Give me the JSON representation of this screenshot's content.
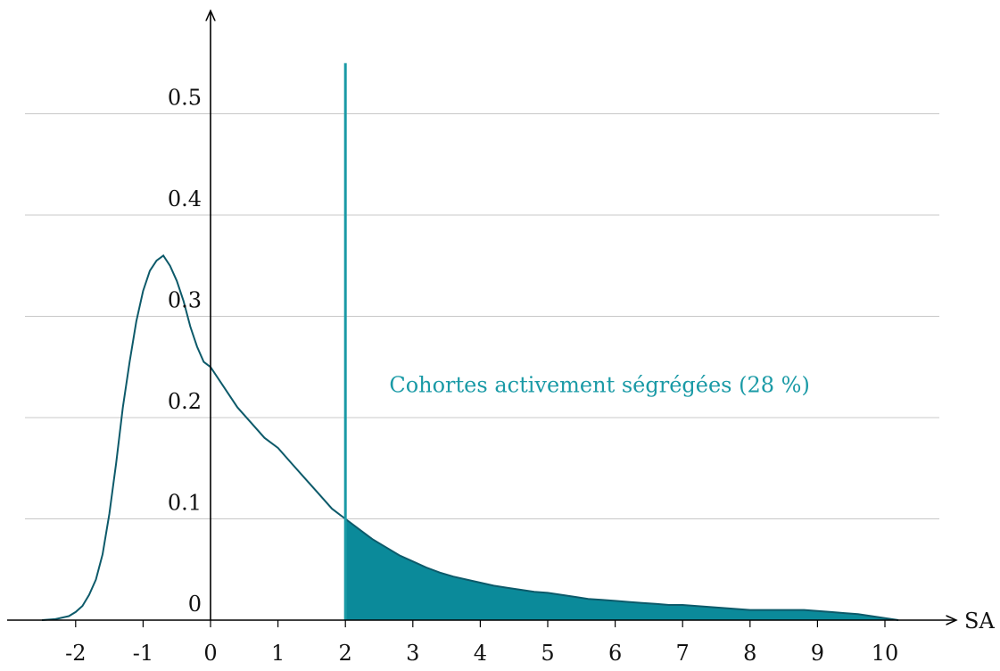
{
  "chart_data": {
    "type": "area",
    "title": "",
    "xlabel": "SA",
    "ylabel": "",
    "xlim": [
      -3.0,
      11.0
    ],
    "ylim": [
      0,
      0.56
    ],
    "grid": true,
    "x_ticks": [
      "-2",
      "-1",
      "0",
      "1",
      "2",
      "3",
      "4",
      "5",
      "6",
      "7",
      "8",
      "9",
      "10"
    ],
    "x_tick_values": [
      -2,
      -1,
      0,
      1,
      2,
      3,
      4,
      5,
      6,
      7,
      8,
      9,
      10
    ],
    "y_ticks": [
      "0",
      "0.1",
      "0.2",
      "0.3",
      "0.4",
      "0.5"
    ],
    "y_tick_values": [
      0,
      0.1,
      0.2,
      0.3,
      0.4,
      0.5
    ],
    "threshold": {
      "x": 2,
      "top": 0.55
    },
    "annotation": {
      "text": "Cohortes activement ségrégées (28 %)",
      "x": 2.65,
      "y": 0.225
    },
    "colors": {
      "curve": "#0d5a6a",
      "fill": "#0b8a9a",
      "threshold": "#1a9aa6",
      "annotation": "#1a9aa6",
      "grid": "#c8c8c8",
      "axis": "#000000"
    },
    "series": [
      {
        "x": [
          -2.5,
          -2.3,
          -2.1,
          -2.0,
          -1.9,
          -1.8,
          -1.7,
          -1.6,
          -1.5,
          -1.4,
          -1.3,
          -1.2,
          -1.1,
          -1.0,
          -0.9,
          -0.8,
          -0.7,
          -0.6,
          -0.5,
          -0.4,
          -0.3,
          -0.2,
          -0.1,
          0.0,
          0.2,
          0.4,
          0.6,
          0.8,
          1.0,
          1.2,
          1.4,
          1.6,
          1.8,
          2.0,
          2.2,
          2.4,
          2.6,
          2.8,
          3.0,
          3.2,
          3.4,
          3.6,
          3.8,
          4.0,
          4.2,
          4.4,
          4.6,
          4.8,
          5.0,
          5.2,
          5.4,
          5.6,
          5.8,
          6.0,
          6.2,
          6.4,
          6.6,
          6.8,
          7.0,
          7.2,
          7.4,
          7.6,
          7.8,
          8.0,
          8.2,
          8.4,
          8.6,
          8.8,
          9.0,
          9.2,
          9.4,
          9.6,
          9.8,
          10.0,
          10.2
        ],
        "y": [
          0.0,
          0.001,
          0.004,
          0.008,
          0.014,
          0.025,
          0.04,
          0.065,
          0.105,
          0.155,
          0.21,
          0.255,
          0.295,
          0.325,
          0.345,
          0.355,
          0.36,
          0.35,
          0.335,
          0.315,
          0.29,
          0.27,
          0.255,
          0.25,
          0.23,
          0.21,
          0.195,
          0.18,
          0.17,
          0.155,
          0.14,
          0.125,
          0.11,
          0.1,
          0.09,
          0.08,
          0.072,
          0.064,
          0.058,
          0.052,
          0.047,
          0.043,
          0.04,
          0.037,
          0.034,
          0.032,
          0.03,
          0.028,
          0.027,
          0.025,
          0.023,
          0.021,
          0.02,
          0.019,
          0.018,
          0.017,
          0.016,
          0.015,
          0.015,
          0.014,
          0.013,
          0.012,
          0.011,
          0.01,
          0.01,
          0.01,
          0.01,
          0.01,
          0.009,
          0.008,
          0.007,
          0.006,
          0.004,
          0.002,
          0.0
        ]
      }
    ]
  }
}
